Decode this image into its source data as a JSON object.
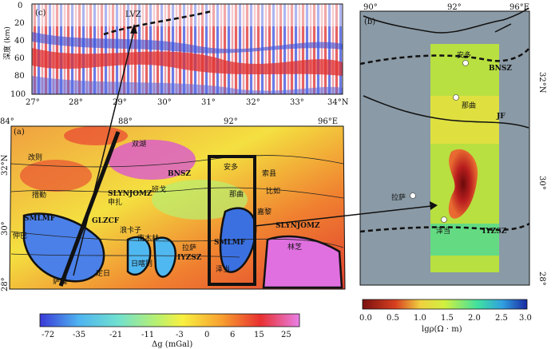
{
  "panel_c": {
    "label": "(c)",
    "ylabel": "深度 (km)",
    "lvz": "LVZ",
    "y_ticks": [
      "0",
      "20",
      "40",
      "60",
      "80",
      "100"
    ],
    "x_ticks": [
      "27°",
      "28°",
      "29°",
      "30°",
      "31°",
      "32°",
      "33°",
      "34°N"
    ]
  },
  "panel_a": {
    "label": "(a)",
    "top_ticks": [
      "84°",
      "88°",
      "92°",
      "96°E"
    ],
    "left_ticks": [
      "32°N",
      "30°",
      "28°"
    ],
    "faults": [
      "BNSZ",
      "SLYNJOMZ",
      "SMLMF",
      "GLZCF",
      "IYZSZ",
      "SMLMF",
      "SLYNJOMZ"
    ],
    "places": [
      "改则",
      "双湖",
      "措勤",
      "申扎",
      "班戈",
      "安多",
      "索县",
      "那曲",
      "比如",
      "嘉黎",
      "拉萨",
      "南木林",
      "日喀则",
      "林芝",
      "泽当",
      "浪卡子",
      "定日",
      "仲巴",
      "萨嘎"
    ]
  },
  "panel_b": {
    "label": "(b)",
    "top_ticks": [
      "90°",
      "92°",
      "96°E"
    ],
    "right_ticks": [
      "32°N",
      "30°",
      "28°"
    ],
    "faults": [
      "BNSZ",
      "JF",
      "IYZSZ"
    ],
    "places": [
      "安多",
      "那曲",
      "拉萨",
      "泽当"
    ]
  },
  "colorbar_a": {
    "ticks": [
      "-72",
      "-35",
      "-21",
      "-11",
      "-3",
      "0",
      "6",
      "15",
      "25"
    ],
    "label": "Δg (mGal)"
  },
  "colorbar_b": {
    "ticks": [
      "0.0",
      "0.5",
      "1.0",
      "1.5",
      "2.0",
      "2.5",
      "3.0"
    ],
    "label": "lgρ(Ω · m)"
  }
}
